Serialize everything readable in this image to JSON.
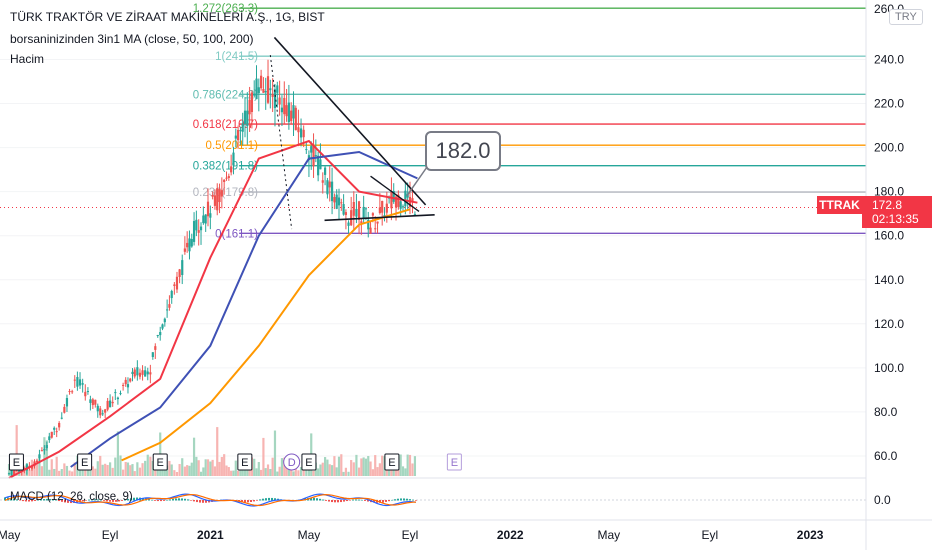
{
  "legend": {
    "title": "TÜRK TRAKTÖR VE ZİRAAT MAKİNELERİ A.Ş., 1G, BIST",
    "indicator": "borsaninizinden 3in1 MA (close, 50, 100, 200)",
    "volume": "Hacim",
    "macd": "MACD (12, 26, close, 9)"
  },
  "currency_badge": "TRY",
  "ticker": {
    "symbol": "TTRAK",
    "price": "172.8",
    "countdown": "02:13:35",
    "color": "#f23645"
  },
  "callout": "182.0",
  "earnings_marker": "E",
  "dividend_marker": "D",
  "chart_data": {
    "type": "candlestick",
    "y_ticks": [
      "240.0",
      "220.0",
      "200.0",
      "180.0",
      "160.0",
      "140.0",
      "120.0",
      "100.0",
      "80.0",
      "60.0"
    ],
    "y_top_label": "260.0",
    "macd_ticks": [
      "0.0"
    ],
    "x_ticks": [
      "May",
      "Eyl",
      "2021",
      "May",
      "Eyl",
      "2022",
      "May",
      "Eyl",
      "2023"
    ],
    "ylim": [
      50,
      267
    ],
    "fib_levels": [
      {
        "label": "1.272(263.3)",
        "value": 263.3,
        "color": "#4caf50"
      },
      {
        "label": "1(241.5)",
        "value": 241.5,
        "color": "#80cbc4"
      },
      {
        "label": "0.786(224.2)",
        "value": 224.2,
        "color": "#5fbcb0"
      },
      {
        "label": "0.618(210.7)",
        "value": 210.7,
        "color": "#f23645"
      },
      {
        "label": "0.5(201.1)",
        "value": 201.1,
        "color": "#ff9800"
      },
      {
        "label": "0.382(191.8)",
        "value": 191.8,
        "color": "#26a69a"
      },
      {
        "label": "0.236(179.8)",
        "value": 179.8,
        "color": "#b2b5be"
      },
      {
        "label": "0(161.1)",
        "value": 161.1,
        "color": "#7e57c2"
      }
    ],
    "current_price": 172.8,
    "price_series": {
      "x": [
        "2020-05-01",
        "2020-06-01",
        "2020-07-01",
        "2020-07-20",
        "2020-08-05",
        "2020-08-20",
        "2020-09-01",
        "2020-09-20",
        "2020-10-01",
        "2020-10-20",
        "2020-11-01",
        "2020-11-15",
        "2020-12-01",
        "2020-12-15",
        "2021-01-01",
        "2021-01-15",
        "2021-02-01",
        "2021-02-15",
        "2021-03-01",
        "2021-03-15",
        "2021-04-01",
        "2021-04-15",
        "2021-05-01",
        "2021-05-15",
        "2021-06-01",
        "2021-06-15",
        "2021-07-01",
        "2021-07-15",
        "2021-08-01",
        "2021-08-15",
        "2021-09-01",
        "2021-09-10"
      ],
      "y": [
        52,
        56,
        75,
        95,
        88,
        80,
        84,
        92,
        97,
        100,
        118,
        132,
        150,
        165,
        172,
        180,
        200,
        215,
        230,
        225,
        220,
        212,
        200,
        190,
        178,
        168,
        172,
        165,
        172,
        178,
        176,
        172.8
      ]
    },
    "series": [
      {
        "name": "MA 50",
        "color": "#f23645",
        "x": [
          "2020-05-01",
          "2020-07-01",
          "2020-09-01",
          "2020-11-01",
          "2021-01-01",
          "2021-03-01",
          "2021-05-01",
          "2021-07-01",
          "2021-09-10"
        ],
        "y": [
          50,
          62,
          78,
          95,
          150,
          195,
          203,
          180,
          175
        ]
      },
      {
        "name": "MA 100",
        "color": "#3f51b5",
        "x": [
          "2020-07-15",
          "2020-09-01",
          "2020-11-01",
          "2021-01-01",
          "2021-03-01",
          "2021-05-01",
          "2021-07-01",
          "2021-09-10"
        ],
        "y": [
          55,
          68,
          82,
          110,
          160,
          195,
          198,
          186
        ]
      },
      {
        "name": "MA 200",
        "color": "#ff9800",
        "x": [
          "2020-09-15",
          "2020-11-01",
          "2021-01-01",
          "2021-03-01",
          "2021-05-01",
          "2021-07-01",
          "2021-09-01"
        ],
        "y": [
          58,
          66,
          84,
          110,
          142,
          165,
          172
        ]
      }
    ]
  }
}
